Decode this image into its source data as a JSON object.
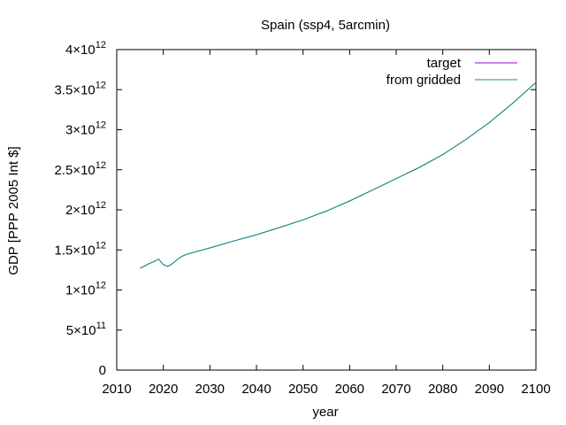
{
  "chart_data": {
    "type": "line",
    "title": "Spain (ssp4, 5arcmin)",
    "xlabel": "year",
    "ylabel": "GDP [PPP 2005 Int $]",
    "xlim": [
      2010,
      2100
    ],
    "ylim": [
      0,
      4000000000000
    ],
    "x_ticks": [
      2010,
      2020,
      2030,
      2040,
      2050,
      2060,
      2070,
      2080,
      2090,
      2100
    ],
    "x_tick_labels": [
      "2010",
      "2020",
      "2030",
      "2040",
      "2050",
      "2060",
      "2070",
      "2080",
      "2090",
      "2100"
    ],
    "y_ticks": [
      {
        "value": 0,
        "mantissa": "0",
        "exponent": ""
      },
      {
        "value": 500000000000,
        "mantissa": "5×10",
        "exponent": "11"
      },
      {
        "value": 1000000000000,
        "mantissa": "1×10",
        "exponent": "12"
      },
      {
        "value": 1500000000000,
        "mantissa": "1.5×10",
        "exponent": "12"
      },
      {
        "value": 2000000000000,
        "mantissa": "2×10",
        "exponent": "12"
      },
      {
        "value": 2500000000000,
        "mantissa": "2.5×10",
        "exponent": "12"
      },
      {
        "value": 3000000000000,
        "mantissa": "3×10",
        "exponent": "12"
      },
      {
        "value": 3500000000000,
        "mantissa": "3.5×10",
        "exponent": "12"
      },
      {
        "value": 4000000000000,
        "mantissa": "4×10",
        "exponent": "12"
      }
    ],
    "grid": false,
    "legend_position": "top-right",
    "series": [
      {
        "name": "target",
        "color": "#9400d3",
        "x": [
          2015,
          2016,
          2017,
          2018,
          2019,
          2020,
          2021,
          2022,
          2023,
          2024,
          2025,
          2030,
          2035,
          2040,
          2045,
          2050,
          2055,
          2060,
          2065,
          2070,
          2075,
          2080,
          2085,
          2090,
          2095,
          2100
        ],
        "y": [
          1270000000000,
          1300000000000,
          1330000000000,
          1355000000000,
          1385000000000,
          1315000000000,
          1295000000000,
          1330000000000,
          1380000000000,
          1420000000000,
          1445000000000,
          1525000000000,
          1610000000000,
          1690000000000,
          1780000000000,
          1875000000000,
          1985000000000,
          2110000000000,
          2250000000000,
          2390000000000,
          2530000000000,
          2690000000000,
          2880000000000,
          3090000000000,
          3330000000000,
          3590000000000
        ]
      },
      {
        "name": "from gridded",
        "color": "#009e73",
        "x": [
          2015,
          2016,
          2017,
          2018,
          2019,
          2020,
          2021,
          2022,
          2023,
          2024,
          2025,
          2030,
          2035,
          2040,
          2045,
          2050,
          2055,
          2060,
          2065,
          2070,
          2075,
          2080,
          2085,
          2090,
          2095,
          2100
        ],
        "y": [
          1270000000000,
          1300000000000,
          1330000000000,
          1355000000000,
          1385000000000,
          1315000000000,
          1295000000000,
          1330000000000,
          1380000000000,
          1420000000000,
          1445000000000,
          1525000000000,
          1610000000000,
          1690000000000,
          1780000000000,
          1875000000000,
          1985000000000,
          2110000000000,
          2250000000000,
          2390000000000,
          2530000000000,
          2690000000000,
          2880000000000,
          3090000000000,
          3330000000000,
          3590000000000
        ]
      }
    ]
  }
}
